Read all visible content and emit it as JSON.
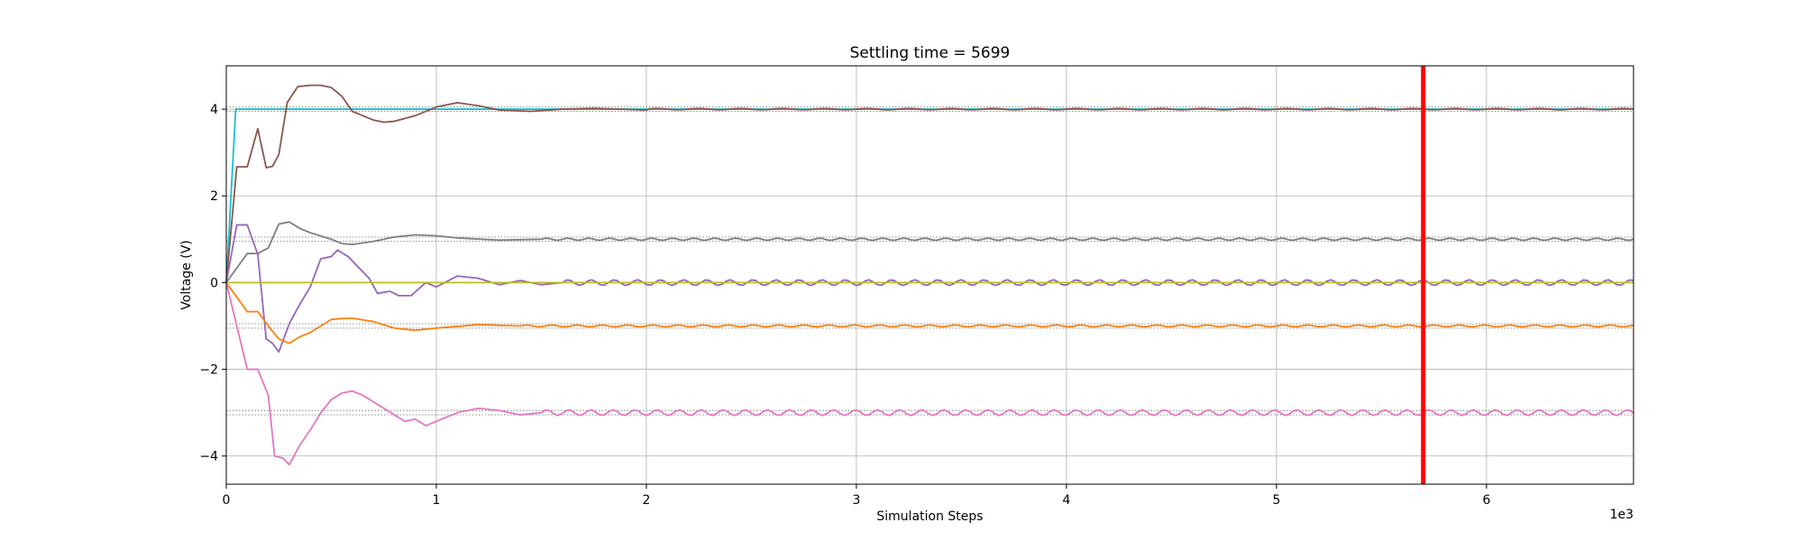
{
  "chart_data": {
    "type": "line",
    "title": "Settling time = 5699",
    "xlabel": "Simulation Steps",
    "ylabel": "Voltage (V)",
    "x_offset_text": "1e3",
    "xlim": [
      0,
      6.7
    ],
    "ylim": [
      -4.65,
      5.0
    ],
    "xticks": [
      0,
      1,
      2,
      3,
      4,
      5,
      6
    ],
    "yticks": [
      -4,
      -2,
      0,
      2,
      4
    ],
    "grid": true,
    "legend": "none",
    "settling_marker": {
      "x": 5.699,
      "color": "#ff0000"
    },
    "tolerance_bands": [
      {
        "center": 4,
        "half_width": 0.05
      },
      {
        "center": 1,
        "half_width": 0.05
      },
      {
        "center": -1,
        "half_width": 0.05
      },
      {
        "center": -3,
        "half_width": 0.05
      }
    ],
    "series": [
      {
        "color": "#17becf",
        "target": 4,
        "ripple": 0.0,
        "period": 0.2,
        "points": [
          [
            0,
            0
          ],
          [
            0.045,
            4.0
          ]
        ]
      },
      {
        "color": "#8c564b",
        "target": 4,
        "ripple": 0.015,
        "period": 0.2,
        "points": [
          [
            0,
            0
          ],
          [
            0.05,
            2.67
          ],
          [
            0.1,
            2.67
          ],
          [
            0.15,
            3.55
          ],
          [
            0.19,
            2.65
          ],
          [
            0.22,
            2.68
          ],
          [
            0.25,
            2.95
          ],
          [
            0.29,
            4.15
          ],
          [
            0.34,
            4.52
          ],
          [
            0.4,
            4.55
          ],
          [
            0.45,
            4.55
          ],
          [
            0.5,
            4.5
          ],
          [
            0.55,
            4.3
          ],
          [
            0.6,
            3.95
          ],
          [
            0.7,
            3.75
          ],
          [
            0.75,
            3.7
          ],
          [
            0.8,
            3.72
          ],
          [
            0.9,
            3.85
          ],
          [
            1.0,
            4.05
          ],
          [
            1.1,
            4.15
          ],
          [
            1.2,
            4.08
          ],
          [
            1.3,
            3.98
          ],
          [
            1.45,
            3.95
          ],
          [
            1.6,
            4.0
          ],
          [
            1.75,
            4.02
          ],
          [
            2.0,
            3.98
          ]
        ]
      },
      {
        "color": "#7f7f7f",
        "target": 1,
        "ripple": 0.025,
        "period": 0.1,
        "points": [
          [
            0,
            0
          ],
          [
            0.1,
            0.67
          ],
          [
            0.15,
            0.67
          ],
          [
            0.2,
            0.8
          ],
          [
            0.25,
            1.35
          ],
          [
            0.3,
            1.4
          ],
          [
            0.35,
            1.25
          ],
          [
            0.4,
            1.15
          ],
          [
            0.5,
            1.0
          ],
          [
            0.55,
            0.9
          ],
          [
            0.6,
            0.88
          ],
          [
            0.7,
            0.95
          ],
          [
            0.8,
            1.05
          ],
          [
            0.9,
            1.1
          ],
          [
            1.0,
            1.08
          ],
          [
            1.1,
            1.03
          ],
          [
            1.3,
            0.98
          ],
          [
            1.5,
            1.0
          ]
        ]
      },
      {
        "color": "#9467bd",
        "target": 0,
        "ripple": 0.065,
        "period": 0.11,
        "points": [
          [
            0,
            0
          ],
          [
            0.05,
            1.33
          ],
          [
            0.1,
            1.33
          ],
          [
            0.15,
            0.65
          ],
          [
            0.19,
            -1.3
          ],
          [
            0.22,
            -1.4
          ],
          [
            0.25,
            -1.6
          ],
          [
            0.3,
            -0.95
          ],
          [
            0.35,
            -0.5
          ],
          [
            0.4,
            -0.1
          ],
          [
            0.45,
            0.55
          ],
          [
            0.5,
            0.6
          ],
          [
            0.53,
            0.75
          ],
          [
            0.58,
            0.6
          ],
          [
            0.62,
            0.4
          ],
          [
            0.68,
            0.1
          ],
          [
            0.72,
            -0.25
          ],
          [
            0.78,
            -0.2
          ],
          [
            0.82,
            -0.3
          ],
          [
            0.88,
            -0.3
          ],
          [
            0.95,
            0.0
          ],
          [
            1.0,
            -0.1
          ],
          [
            1.1,
            0.15
          ],
          [
            1.2,
            0.1
          ],
          [
            1.3,
            -0.05
          ],
          [
            1.4,
            0.05
          ],
          [
            1.5,
            -0.05
          ],
          [
            1.6,
            0.0
          ]
        ]
      },
      {
        "color": "#ff7f0e",
        "target": -1,
        "ripple": 0.02,
        "period": 0.12,
        "points": [
          [
            0,
            0
          ],
          [
            0.1,
            -0.67
          ],
          [
            0.15,
            -0.67
          ],
          [
            0.2,
            -1.0
          ],
          [
            0.25,
            -1.3
          ],
          [
            0.3,
            -1.4
          ],
          [
            0.35,
            -1.25
          ],
          [
            0.4,
            -1.15
          ],
          [
            0.5,
            -0.85
          ],
          [
            0.55,
            -0.83
          ],
          [
            0.6,
            -0.82
          ],
          [
            0.7,
            -0.9
          ],
          [
            0.8,
            -1.05
          ],
          [
            0.9,
            -1.1
          ],
          [
            1.0,
            -1.05
          ],
          [
            1.2,
            -0.97
          ],
          [
            1.4,
            -1.0
          ]
        ]
      },
      {
        "color": "#e377c2",
        "target": -3,
        "ripple": 0.065,
        "period": 0.105,
        "points": [
          [
            0,
            0
          ],
          [
            0.1,
            -2.0
          ],
          [
            0.15,
            -2.0
          ],
          [
            0.2,
            -2.6
          ],
          [
            0.23,
            -4.0
          ],
          [
            0.27,
            -4.05
          ],
          [
            0.3,
            -4.2
          ],
          [
            0.35,
            -3.75
          ],
          [
            0.4,
            -3.4
          ],
          [
            0.45,
            -3.0
          ],
          [
            0.5,
            -2.7
          ],
          [
            0.55,
            -2.55
          ],
          [
            0.6,
            -2.5
          ],
          [
            0.65,
            -2.6
          ],
          [
            0.7,
            -2.75
          ],
          [
            0.75,
            -2.9
          ],
          [
            0.8,
            -3.05
          ],
          [
            0.85,
            -3.2
          ],
          [
            0.9,
            -3.15
          ],
          [
            0.95,
            -3.3
          ],
          [
            1.0,
            -3.2
          ],
          [
            1.1,
            -3.0
          ],
          [
            1.2,
            -2.9
          ],
          [
            1.3,
            -2.95
          ],
          [
            1.4,
            -3.05
          ],
          [
            1.5,
            -3.0
          ]
        ]
      },
      {
        "color": "#bcbd22",
        "target": 0,
        "ripple": 0.0,
        "period": 0.2,
        "points": [
          [
            0,
            0
          ],
          [
            6.7,
            0
          ]
        ]
      }
    ]
  }
}
